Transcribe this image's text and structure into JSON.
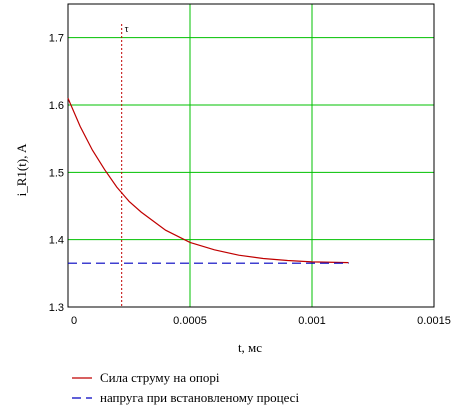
{
  "chart_data": {
    "type": "line",
    "xlabel": "t, мс",
    "ylabel": "i_R1(t), A",
    "xlim": [
      0,
      0.0015
    ],
    "ylim": [
      1.3,
      1.75
    ],
    "x_ticks": [
      "0",
      "0.0005",
      "0.001",
      "0.0015"
    ],
    "y_ticks": [
      "1.3",
      "1.4",
      "1.5",
      "1.6",
      "1.7"
    ],
    "grid": true,
    "grid_color": "#00c000",
    "series": [
      {
        "name": "Сила струму на опорі",
        "color": "#c00000",
        "style": "solid",
        "x": [
          0,
          5e-05,
          0.0001,
          0.00015,
          0.0002,
          0.00025,
          0.0003,
          0.0004,
          0.0005,
          0.0006,
          0.0007,
          0.0008,
          0.0009,
          0.001,
          0.00115
        ],
        "y": [
          1.61,
          1.568,
          1.533,
          1.504,
          1.478,
          1.457,
          1.441,
          1.414,
          1.396,
          1.385,
          1.377,
          1.372,
          1.369,
          1.367,
          1.366
        ]
      },
      {
        "name": "напруга при встановленому процесі",
        "color": "#0000c0",
        "style": "dashed",
        "x": [
          0,
          0.00115
        ],
        "y": [
          1.365,
          1.365
        ]
      }
    ],
    "marker": {
      "label": "τ",
      "x": 0.00022,
      "color": "#c00000",
      "style": "dotted"
    },
    "legend_position": "bottom"
  }
}
